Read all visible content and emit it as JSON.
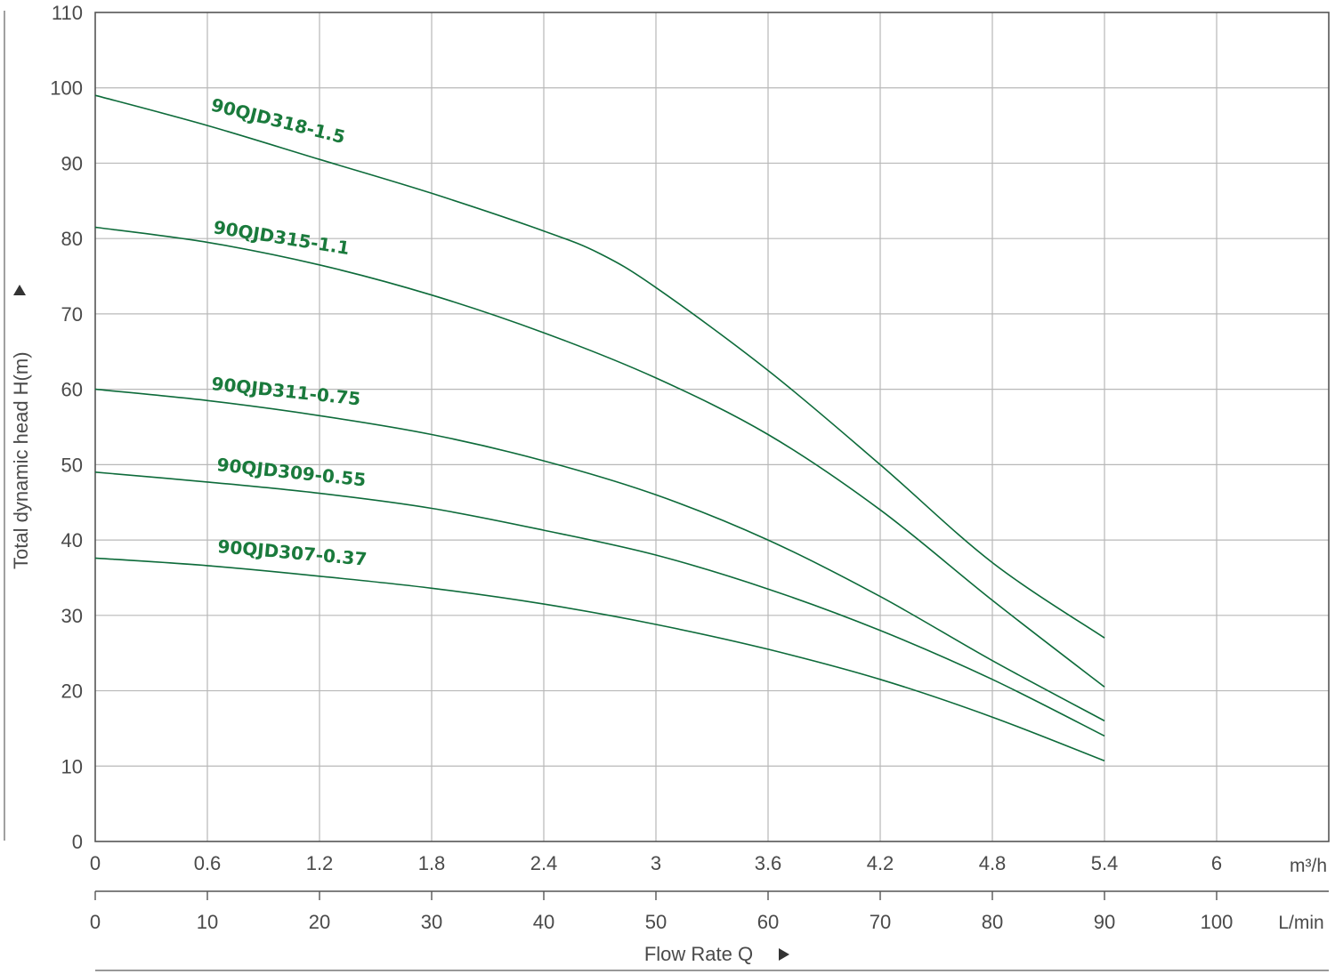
{
  "chart_data": {
    "type": "line",
    "ylabel": "Total dynamic head H(m)",
    "xlabel": "Flow Rate Q",
    "x_primary_unit": "m³/h",
    "x_secondary_unit": "L/min",
    "ylim": [
      0,
      110
    ],
    "xlim_m3h": [
      0,
      6.6
    ],
    "xlim_lmin": [
      0,
      110
    ],
    "y_ticks": [
      "0",
      "10",
      "20",
      "30",
      "40",
      "50",
      "60",
      "70",
      "80",
      "90",
      "100",
      "110"
    ],
    "x_ticks_m3h": [
      "0",
      "0.6",
      "1.2",
      "1.8",
      "2.4",
      "3",
      "3.6",
      "4.2",
      "4.8",
      "5.4",
      "6"
    ],
    "x_ticks_lmin": [
      "0",
      "10",
      "20",
      "30",
      "40",
      "50",
      "60",
      "70",
      "80",
      "90",
      "100"
    ],
    "grid": true,
    "colors": {
      "curve": "#0d6b3a",
      "label": "#1a7a3c",
      "grid": "#b8b8b8"
    },
    "series": [
      {
        "name": "90QJD318-1.5",
        "x": [
          0,
          10,
          20,
          30,
          40,
          45,
          50,
          60,
          70,
          80,
          90
        ],
        "y": [
          99,
          95,
          90.5,
          86,
          81,
          78,
          73.5,
          62.5,
          50,
          37,
          27
        ]
      },
      {
        "name": "90QJD315-1.1",
        "x": [
          0,
          10,
          20,
          30,
          40,
          50,
          60,
          70,
          80,
          90
        ],
        "y": [
          81.5,
          79.5,
          76.5,
          72.5,
          67.5,
          61.5,
          54,
          44,
          32,
          20.5
        ]
      },
      {
        "name": "90QJD311-0.75",
        "x": [
          0,
          10,
          20,
          30,
          40,
          50,
          60,
          70,
          80,
          90
        ],
        "y": [
          60,
          58.5,
          56.5,
          54,
          50.5,
          46,
          40,
          32.5,
          24,
          16
        ]
      },
      {
        "name": "90QJD309-0.55",
        "x": [
          0,
          10,
          20,
          30,
          40,
          50,
          60,
          70,
          80,
          90
        ],
        "y": [
          49,
          47.7,
          46.2,
          44.2,
          41.3,
          38,
          33.5,
          28,
          21.5,
          14
        ]
      },
      {
        "name": "90QJD307-0.37",
        "x": [
          0,
          10,
          20,
          30,
          40,
          50,
          60,
          70,
          80,
          90
        ],
        "y": [
          37.6,
          36.6,
          35.2,
          33.6,
          31.5,
          28.8,
          25.5,
          21.5,
          16.5,
          10.7
        ]
      }
    ]
  }
}
